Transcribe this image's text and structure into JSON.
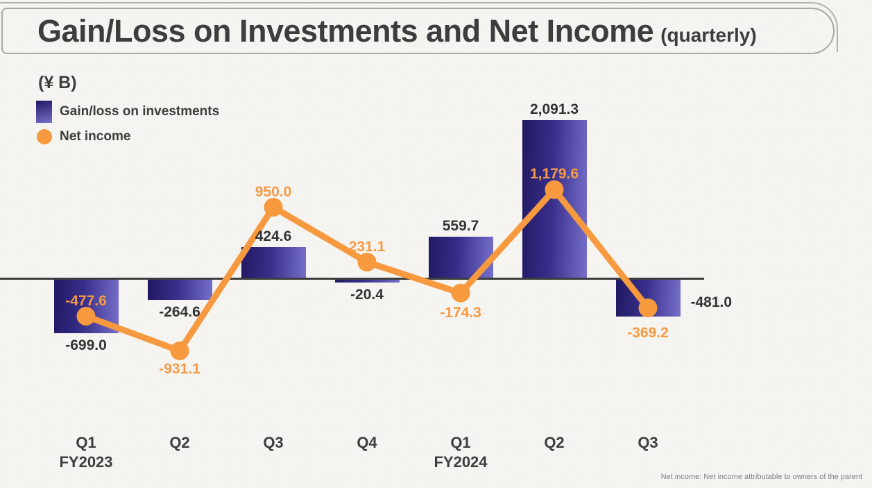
{
  "title": {
    "main": "Gain/Loss on Investments and Net Income",
    "suffix": "(quarterly)"
  },
  "footnote": "Net income: Net income attributable to owners of the parent",
  "chart_data": {
    "type": "combo",
    "unit": "(¥ B)",
    "categories": [
      "Q1",
      "Q2",
      "Q3",
      "Q4",
      "Q1",
      "Q2",
      "Q3"
    ],
    "fiscal_years": [
      {
        "index": 0,
        "label": "FY2023"
      },
      {
        "index": 4,
        "label": "FY2024"
      }
    ],
    "axis": {
      "zero_line": true,
      "gridlines": false,
      "y_ticks_visible": false
    },
    "legend_position": "top-left",
    "series": [
      {
        "name": "Gain/loss on investments",
        "type": "bar",
        "values": [
          -699.0,
          -264.6,
          424.6,
          -20.4,
          559.7,
          2091.3,
          -481.0
        ],
        "labels": [
          "-699.0",
          "-264.6",
          "424.6",
          "-20.4",
          "559.7",
          "2,091.3",
          "-481.0"
        ],
        "label_pos": [
          "below",
          "below",
          "above",
          "below",
          "above",
          "above",
          "right"
        ]
      },
      {
        "name": "Net income",
        "type": "line",
        "values": [
          -477.6,
          -931.1,
          950.0,
          231.1,
          -174.3,
          1179.6,
          -369.2
        ],
        "labels": [
          "-477.6",
          "-931.1",
          "950.0",
          "231.1",
          "-174.3",
          "1,179.6",
          "-369.2"
        ],
        "label_pos": [
          "above",
          "below",
          "above",
          "above",
          "below",
          "above",
          "below"
        ]
      }
    ],
    "colors": {
      "bar_gradient_dark": "#211963",
      "bar_gradient_light": "#766fc9",
      "line": "#f6993f",
      "bar_label": "#333333",
      "net_label": "#f79a43",
      "axis": "#3e3e3e"
    }
  }
}
